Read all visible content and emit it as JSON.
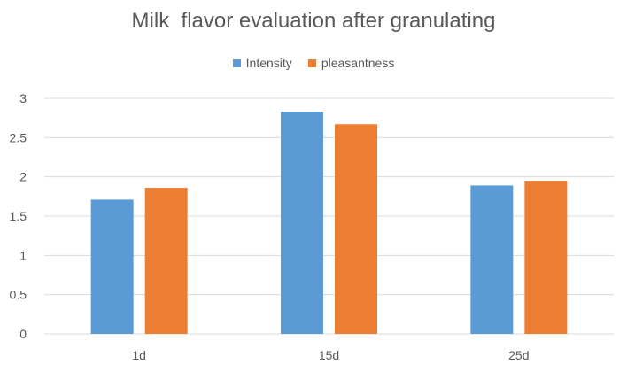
{
  "chart_data": {
    "type": "bar",
    "title": "Milk  flavor evaluation after granulating",
    "categories": [
      "1d",
      "15d",
      "25d"
    ],
    "series": [
      {
        "name": "Intensity",
        "values": [
          1.71,
          2.83,
          1.89
        ],
        "color": "#5B9BD5"
      },
      {
        "name": "pleasantness",
        "values": [
          1.86,
          2.67,
          1.95
        ],
        "color": "#ED7D31"
      }
    ],
    "ylim": [
      0,
      3
    ],
    "yticks": [
      "0",
      "0.5",
      "1",
      "1.5",
      "2",
      "2.5",
      "3"
    ],
    "grid": true,
    "legend_position": "top"
  }
}
